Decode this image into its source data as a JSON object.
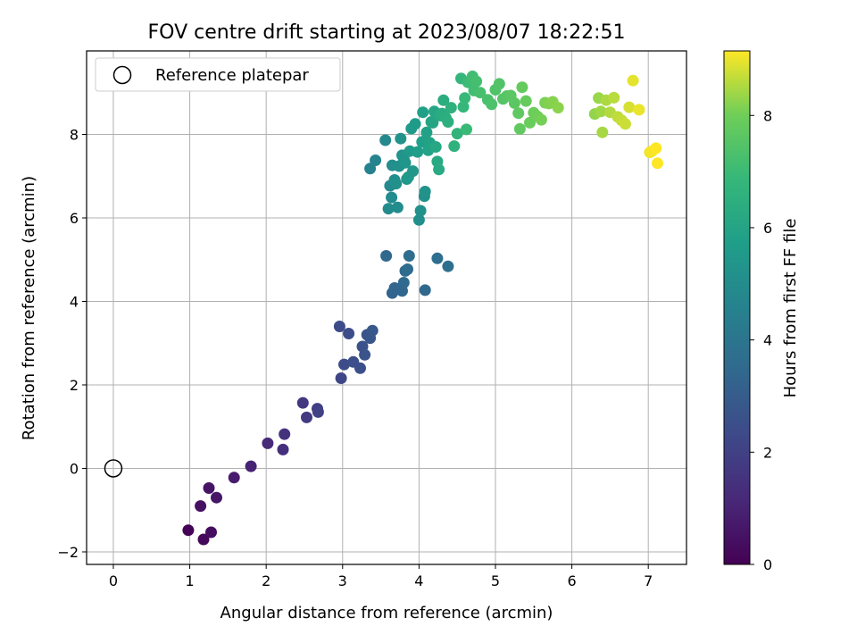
{
  "chart_data": {
    "type": "scatter",
    "title": "FOV centre drift starting at 2023/08/07 18:22:51",
    "xlabel": "Angular distance from reference (arcmin)",
    "ylabel": "Rotation from reference (arcmin)",
    "xlim": [
      -0.35,
      7.5
    ],
    "ylim": [
      -2.3,
      10.0
    ],
    "xticks": [
      0,
      1,
      2,
      3,
      4,
      5,
      6,
      7
    ],
    "yticks": [
      -2,
      0,
      2,
      4,
      6,
      8
    ],
    "grid": true,
    "legend": {
      "placement": "top-left",
      "entries": [
        "Reference platepar"
      ]
    },
    "reference_point": {
      "x": 0,
      "y": 0,
      "label": "Reference platepar"
    },
    "colorbar": {
      "label": "Hours from first FF file",
      "colormap": "viridis",
      "range": [
        0,
        9.15
      ],
      "ticks": [
        0,
        2,
        4,
        6,
        8
      ]
    },
    "series": [
      {
        "x": [
          0.98,
          1.18,
          1.28,
          1.14,
          1.25,
          1.35,
          1.58,
          1.8,
          2.02,
          2.22,
          2.24,
          2.48,
          2.53,
          2.67,
          2.68,
          2.96,
          2.98,
          3.02,
          3.08,
          3.14,
          3.23,
          3.26,
          3.29,
          3.32,
          3.36,
          3.39,
          3.57,
          3.65,
          3.68,
          3.78,
          3.8,
          3.82,
          3.85,
          3.87,
          4.08,
          4.24,
          4.38,
          3.36,
          3.43,
          3.56,
          3.6,
          3.62,
          3.64,
          3.65,
          3.68,
          3.7,
          3.72,
          3.74,
          3.76,
          3.78,
          3.8,
          3.82,
          3.84,
          3.86,
          3.88,
          3.9,
          3.92,
          3.95,
          3.98,
          4.0,
          4.02,
          4.04,
          4.05,
          4.07,
          4.08,
          4.1,
          4.12,
          4.14,
          4.16,
          4.18,
          4.2,
          4.22,
          4.24,
          4.26,
          4.28,
          4.3,
          4.32,
          4.35,
          4.38,
          4.42,
          4.46,
          4.5,
          4.55,
          4.58,
          4.6,
          4.62,
          4.64,
          4.68,
          4.7,
          4.72,
          4.75,
          4.8,
          4.9,
          4.95,
          5.0,
          5.05,
          5.1,
          5.15,
          5.2,
          5.25,
          5.3,
          5.32,
          5.35,
          5.4,
          5.45,
          5.5,
          5.55,
          5.6,
          5.65,
          5.7,
          5.75,
          5.82,
          6.3,
          6.35,
          6.38,
          6.4,
          6.45,
          6.5,
          6.55,
          6.6,
          6.65,
          6.7,
          6.75,
          6.8,
          6.88,
          7.02,
          7.05,
          7.1,
          7.12
        ],
        "y": [
          -1.48,
          -1.7,
          -1.53,
          -0.9,
          -0.47,
          -0.7,
          -0.22,
          0.05,
          0.6,
          0.45,
          0.82,
          1.57,
          1.22,
          1.43,
          1.35,
          3.4,
          2.16,
          2.49,
          3.23,
          2.55,
          2.4,
          2.92,
          2.72,
          3.2,
          3.12,
          3.3,
          5.09,
          4.2,
          4.32,
          4.25,
          4.45,
          4.73,
          4.77,
          5.09,
          4.27,
          5.03,
          4.84,
          7.18,
          7.38,
          7.86,
          6.22,
          6.77,
          6.49,
          7.26,
          6.91,
          6.82,
          6.25,
          7.24,
          7.9,
          7.5,
          7.42,
          7.32,
          6.93,
          6.98,
          7.6,
          8.14,
          7.12,
          8.25,
          7.58,
          5.95,
          6.17,
          7.82,
          8.53,
          6.52,
          6.63,
          8.05,
          7.62,
          7.8,
          8.3,
          8.28,
          8.55,
          7.7,
          7.35,
          7.16,
          8.45,
          8.5,
          8.82,
          8.4,
          8.3,
          8.64,
          7.72,
          8.02,
          9.34,
          8.66,
          8.87,
          8.12,
          9.25,
          9.23,
          9.39,
          9.05,
          9.27,
          9.0,
          8.83,
          8.72,
          9.07,
          9.21,
          8.85,
          8.92,
          8.93,
          8.75,
          8.51,
          8.13,
          9.13,
          8.8,
          8.28,
          8.52,
          8.43,
          8.35,
          8.76,
          8.74,
          8.78,
          8.64,
          8.49,
          8.87,
          8.55,
          8.05,
          8.82,
          8.53,
          8.88,
          8.42,
          8.34,
          8.25,
          8.65,
          9.29,
          8.59,
          7.57,
          7.6,
          7.67,
          7.31
        ],
        "c": [
          0.05,
          0.22,
          0.35,
          0.45,
          0.55,
          0.65,
          0.8,
          1.0,
          1.2,
          1.4,
          1.5,
          1.7,
          1.8,
          1.9,
          2.0,
          2.35,
          2.2,
          2.4,
          2.45,
          2.5,
          2.55,
          2.6,
          2.65,
          2.7,
          2.75,
          2.8,
          3.45,
          3.3,
          3.35,
          3.4,
          3.5,
          3.55,
          3.6,
          3.65,
          3.45,
          3.7,
          3.75,
          4.6,
          4.65,
          4.85,
          4.95,
          4.9,
          5.0,
          5.05,
          5.1,
          5.15,
          5.0,
          5.2,
          5.25,
          5.3,
          5.35,
          5.4,
          5.45,
          5.5,
          5.55,
          5.6,
          5.45,
          5.65,
          5.7,
          5.1,
          5.15,
          5.75,
          5.8,
          5.2,
          5.25,
          5.85,
          5.9,
          5.95,
          6.0,
          6.05,
          6.1,
          6.15,
          6.2,
          6.25,
          6.3,
          6.35,
          6.4,
          6.45,
          6.5,
          6.55,
          6.6,
          6.7,
          6.8,
          6.85,
          6.9,
          6.95,
          7.0,
          7.05,
          7.1,
          7.15,
          7.2,
          7.25,
          7.3,
          7.35,
          7.4,
          7.45,
          7.5,
          7.55,
          7.6,
          7.65,
          7.7,
          7.75,
          7.8,
          7.85,
          7.9,
          7.95,
          8.0,
          8.05,
          8.1,
          8.15,
          8.2,
          8.25,
          8.3,
          8.35,
          8.4,
          8.45,
          8.5,
          8.55,
          8.6,
          8.65,
          8.7,
          8.75,
          8.85,
          8.95,
          9.0,
          9.05,
          9.1
        ]
      }
    ]
  }
}
